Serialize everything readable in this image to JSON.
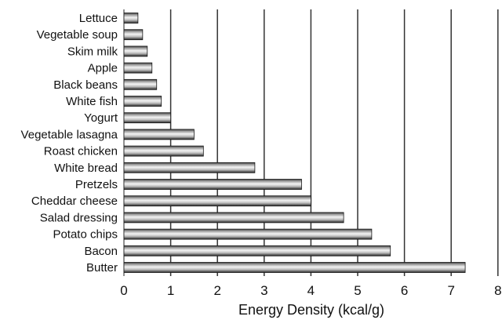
{
  "chart_data": {
    "type": "bar",
    "orientation": "horizontal",
    "title": "",
    "xlabel": "Energy Density (kcal/g)",
    "ylabel": "",
    "xlim": [
      0,
      8
    ],
    "xticks": [
      "0",
      "1",
      "2",
      "3",
      "4",
      "5",
      "6",
      "7",
      "8"
    ],
    "grid": "vertical lines at each major tick",
    "categories": [
      "Lettuce",
      "Vegetable soup",
      "Skim milk",
      "Apple",
      "Black beans",
      "White fish",
      "Yogurt",
      "Vegetable lasagna",
      "Roast chicken",
      "White bread",
      "Pretzels",
      "Cheddar cheese",
      "Salad dressing",
      "Potato chips",
      "Bacon",
      "Butter"
    ],
    "values": [
      0.3,
      0.4,
      0.5,
      0.6,
      0.7,
      0.8,
      1.0,
      1.5,
      1.7,
      2.8,
      3.8,
      4.0,
      4.7,
      5.3,
      5.7,
      7.3
    ],
    "bar_style": "metallic gradient (light center, dark edges)",
    "colors": {
      "bar_dark": "#2a2a2a",
      "bar_light": "#f4f4f4",
      "grid": "#333333"
    }
  }
}
